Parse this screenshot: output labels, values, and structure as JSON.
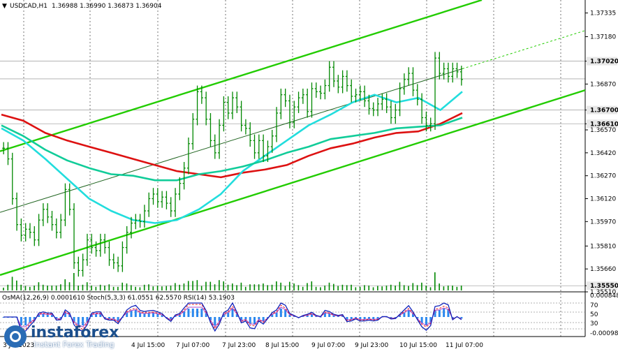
{
  "header": {
    "title": "USDCAD,H1",
    "ohlc": "1.36988 1.36990 1.36873 1.36904",
    "indicators": "OsMA(12,26,9) 0.0001610  Stoch(5,3,3) 61.0551 62.5570  RSI(14) 53.1903"
  },
  "colors": {
    "channel": "#22cc00",
    "ma_red": "#dd1111",
    "ma_cyan": "#22dddd",
    "ma_teal": "#11cc99",
    "candles": "#008800",
    "osma": "#2a88ee",
    "stoch_main": "#1122bb",
    "stoch_signal": "#ee2222",
    "rsi": "#aa44cc"
  },
  "chart_data": {
    "type": "line",
    "symbol": "USDCAD",
    "timeframe": "H1",
    "price_axis_ticks": [
      "1.37335",
      "1.37180",
      "1.37020",
      "1.36870",
      "1.36700",
      "1.36610",
      "1.36570",
      "1.36420",
      "1.36270",
      "1.36120",
      "1.35970",
      "1.35810",
      "1.35660",
      "1.35550",
      "1.35510"
    ],
    "highlighted_prices": [
      "1.37020",
      "1.36904",
      "1.36700",
      "1.36610",
      "1.35550"
    ],
    "current_price": "1.36904",
    "ylim": [
      1.3551,
      1.3742
    ],
    "time_labels": [
      "4 Jul 15:00",
      "7 Jul 07:00",
      "7 Jul 23:00",
      "8 Jul 15:00",
      "9 Jul 07:00",
      "9 Jul 23:00",
      "10 Jul 15:00",
      "11 Jul 07:00"
    ],
    "first_time_label": "3 Jul 2023",
    "price_series": [
      1.3645,
      1.3638,
      1.3612,
      1.3595,
      1.3588,
      1.3592,
      1.359,
      1.3585,
      1.3598,
      1.3605,
      1.36,
      1.3595,
      1.359,
      1.3598,
      1.3618,
      1.3605,
      1.357,
      1.3565,
      1.3572,
      1.3585,
      1.358,
      1.3578,
      1.3585,
      1.358,
      1.3572,
      1.357,
      1.3568,
      1.358,
      1.359,
      1.3596,
      1.3598,
      1.3597,
      1.3604,
      1.3612,
      1.3615,
      1.361,
      1.3613,
      1.3609,
      1.3604,
      1.3615,
      1.3622,
      1.3632,
      1.3648,
      1.3664,
      1.3682,
      1.3678,
      1.3664,
      1.365,
      1.3642,
      1.366,
      1.3675,
      1.3668,
      1.3678,
      1.3672,
      1.366,
      1.3658,
      1.365,
      1.3642,
      1.365,
      1.364,
      1.3646,
      1.3653,
      1.3668,
      1.368,
      1.3676,
      1.3662,
      1.3672,
      1.3678,
      1.368,
      1.3669,
      1.3684,
      1.3682,
      1.3681,
      1.3686,
      1.3698,
      1.3689,
      1.3685,
      1.3692,
      1.3686,
      1.3679,
      1.368,
      1.3682,
      1.3676,
      1.3671,
      1.367,
      1.3674,
      1.3677,
      1.3672,
      1.3665,
      1.367,
      1.3684,
      1.369,
      1.3694,
      1.3683,
      1.3677,
      1.3665,
      1.366,
      1.3661,
      1.3704,
      1.3694,
      1.3697,
      1.3692,
      1.3697,
      1.3695,
      1.369
    ],
    "series": [
      {
        "values": [
          1.3667,
          1.3663,
          1.3655,
          1.365,
          1.3646,
          1.3642,
          1.3638,
          1.3634,
          1.363,
          1.3628,
          1.3626,
          1.3629,
          1.3631,
          1.3634,
          1.364,
          1.3645,
          1.3648,
          1.3652,
          1.3655,
          1.3656,
          1.3661,
          1.3668
        ]
      },
      {
        "values": [
          1.3658,
          1.365,
          1.3638,
          1.3625,
          1.3612,
          1.3604,
          1.3598,
          1.3596,
          1.3598,
          1.3605,
          1.3615,
          1.363,
          1.364,
          1.365,
          1.366,
          1.3667,
          1.3675,
          1.368,
          1.3675,
          1.3678,
          1.367,
          1.3682
        ]
      },
      {
        "values": [
          1.366,
          1.3653,
          1.3644,
          1.3637,
          1.3632,
          1.3628,
          1.3627,
          1.3624,
          1.3624,
          1.3628,
          1.363,
          1.3633,
          1.3637,
          1.3642,
          1.3646,
          1.3651,
          1.3653,
          1.3655,
          1.3658,
          1.3659,
          1.366,
          1.3665
        ]
      }
    ]
  }
}
